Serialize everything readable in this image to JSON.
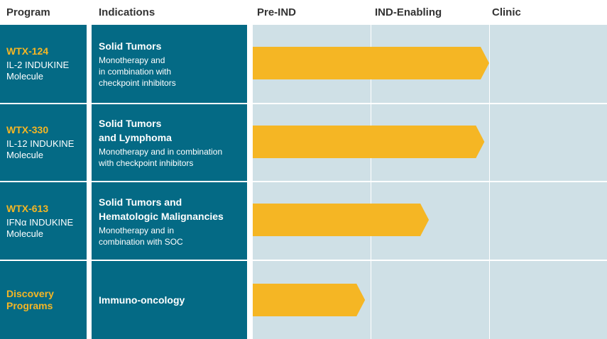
{
  "chart_data": {
    "type": "bar",
    "title": "",
    "orientation": "horizontal",
    "stages": [
      "Pre-IND",
      "IND-Enabling",
      "Clinic"
    ],
    "categories": [
      "WTX-124",
      "WTX-330",
      "WTX-613",
      "Discovery Programs"
    ],
    "values": [
      2.0,
      1.96,
      1.49,
      0.95
    ],
    "xlim": [
      0,
      3
    ],
    "bar_color": "#f5b624"
  },
  "headers": {
    "program": "Program",
    "indications": "Indications",
    "stage_1": "Pre-IND",
    "stage_2": "IND-Enabling",
    "stage_3": "Clinic"
  },
  "colors": {
    "box": "#046a85",
    "stage_bg": "#cfe0e6",
    "program_name": "#f5b624",
    "bar": "#f5b624"
  },
  "rows": [
    {
      "program_name": "WTX-124",
      "program_desc": "IL-2 INDUKINE\nMolecule",
      "indication_title": "Solid Tumors",
      "indication_desc": "Monotherapy and\nin combination with\ncheckpoint inhibitors"
    },
    {
      "program_name": "WTX-330",
      "program_desc": "IL-12 INDUKINE\nMolecule",
      "indication_title": "Solid Tumors\nand Lymphoma",
      "indication_desc": "Monotherapy and in combination\nwith checkpoint inhibitors"
    },
    {
      "program_name": "WTX-613",
      "program_desc": "IFNα INDUKINE\nMolecule",
      "indication_title": "Solid Tumors and\nHematologic Malignancies",
      "indication_desc": "Monotherapy and in\ncombination with SOC"
    },
    {
      "program_name": "Discovery\nPrograms",
      "program_desc": "",
      "indication_title": "Immuno-oncology",
      "indication_desc": ""
    }
  ]
}
